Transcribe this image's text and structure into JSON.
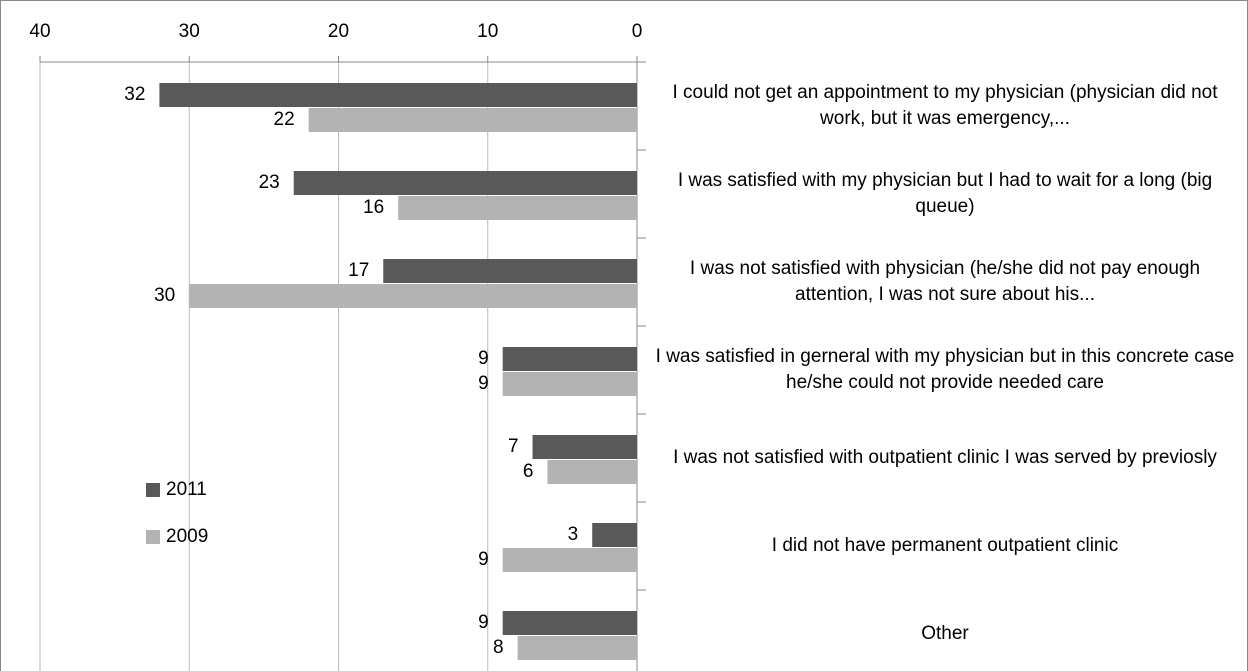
{
  "chart_data": {
    "type": "bar",
    "orientation": "horizontal",
    "x_reversed": true,
    "categories": [
      "I could not get an appointment to my physician (physician did not work, but it was emergency,...",
      "I was satisfied with my physician but I had to wait for a long (big queue)",
      "I was not satisfied with physician (he/she did not pay enough attention, I was not sure about his...",
      "I was satisfied in gerneral with my physician but in this concrete case he/she could not provide needed care",
      "I was not satisfied with outpatient clinic I was served by previosly",
      "I did not have permanent outpatient clinic",
      "Other"
    ],
    "series": [
      {
        "name": "2011",
        "color": "#595959",
        "values": [
          32,
          23,
          17,
          9,
          7,
          3,
          9
        ]
      },
      {
        "name": "2009",
        "color": "#b3b3b3",
        "values": [
          22,
          16,
          30,
          9,
          6,
          9,
          8
        ]
      }
    ],
    "xlim": [
      0,
      40
    ],
    "xticks": [
      40,
      30,
      20,
      10,
      0
    ],
    "grid": true,
    "legend": "left"
  }
}
